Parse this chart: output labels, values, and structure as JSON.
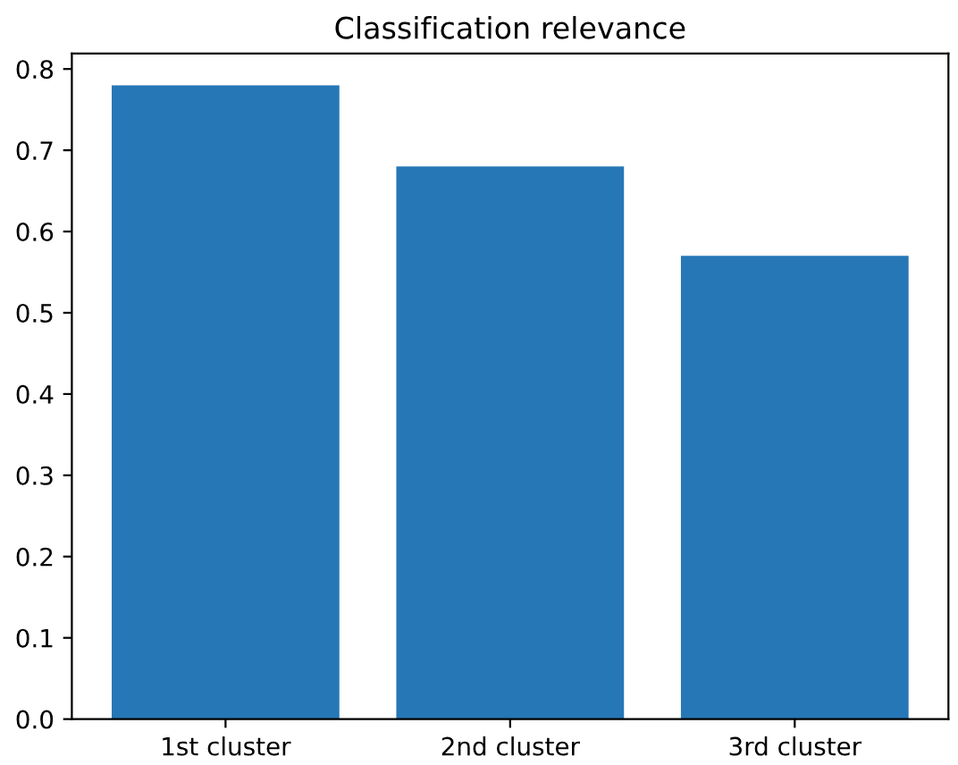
{
  "chart_data": {
    "type": "bar",
    "title": "Classification relevance",
    "categories": [
      "1st cluster",
      "2nd cluster",
      "3rd cluster"
    ],
    "values": [
      0.78,
      0.68,
      0.57
    ],
    "color": "#2677b6",
    "ylim": [
      0,
      0.819
    ],
    "yticks": [
      {
        "value": 0,
        "label": "0.0"
      },
      0.1,
      0.2,
      0.3,
      0.4,
      0.5,
      0.6,
      0.7,
      0.8
    ],
    "grid": false
  }
}
